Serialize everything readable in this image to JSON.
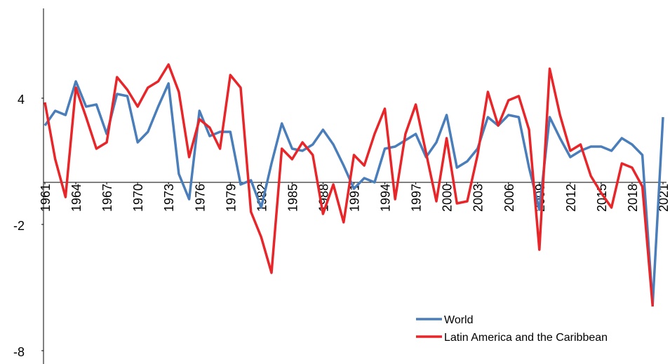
{
  "chart_data": {
    "type": "line",
    "x": [
      1961,
      1962,
      1963,
      1964,
      1965,
      1966,
      1967,
      1968,
      1969,
      1970,
      1971,
      1972,
      1973,
      1974,
      1975,
      1976,
      1977,
      1978,
      1979,
      1980,
      1981,
      1982,
      1983,
      1984,
      1985,
      1986,
      1987,
      1988,
      1989,
      1990,
      1991,
      1992,
      1993,
      1994,
      1995,
      1996,
      1997,
      1998,
      1999,
      2000,
      2001,
      2002,
      2003,
      2004,
      2005,
      2006,
      2007,
      2008,
      2009,
      2010,
      2011,
      2012,
      2013,
      2014,
      2015,
      2016,
      2017,
      2018,
      2019,
      2020,
      2021
    ],
    "series": [
      {
        "name": "World",
        "color": "#4a7ebb",
        "values": [
          2.7,
          3.4,
          3.2,
          4.8,
          3.6,
          3.7,
          2.3,
          4.2,
          4.1,
          1.9,
          2.4,
          3.6,
          4.7,
          0.4,
          -0.8,
          3.4,
          2.2,
          2.4,
          2.4,
          -0.1,
          0.1,
          -1.2,
          0.9,
          2.8,
          1.6,
          1.5,
          1.8,
          2.5,
          1.8,
          0.8,
          -0.3,
          0.2,
          0.0,
          1.6,
          1.7,
          2.0,
          2.3,
          1.2,
          1.9,
          3.2,
          0.7,
          1.0,
          1.6,
          3.1,
          2.7,
          3.2,
          3.1,
          0.7,
          -1.3,
          3.1,
          2.1,
          1.2,
          1.5,
          1.7,
          1.7,
          1.5,
          2.1,
          1.8,
          1.3,
          -5.8,
          3.1
        ]
      },
      {
        "name": "Latin America and the Caribbean",
        "color": "#e8262a",
        "values": [
          3.8,
          1.1,
          -0.7,
          4.5,
          3.1,
          1.6,
          1.9,
          5.0,
          4.4,
          3.6,
          4.5,
          4.8,
          5.6,
          4.3,
          1.2,
          3.0,
          2.6,
          1.6,
          5.1,
          4.5,
          -1.4,
          -2.6,
          -4.3,
          1.6,
          1.1,
          1.9,
          1.3,
          -1.5,
          -0.1,
          -1.9,
          1.3,
          0.8,
          2.3,
          3.5,
          -0.8,
          2.3,
          3.7,
          1.4,
          -0.9,
          2.1,
          -1.0,
          -0.9,
          1.3,
          4.3,
          2.7,
          3.9,
          4.1,
          2.5,
          -3.2,
          5.4,
          3.2,
          1.5,
          1.8,
          0.3,
          -0.5,
          -1.2,
          0.9,
          0.7,
          -0.2,
          -5.9,
          null
        ]
      }
    ],
    "xlim": [
      1961,
      2021
    ],
    "xticks": [
      1961,
      1964,
      1967,
      1970,
      1973,
      1976,
      1979,
      1982,
      1985,
      1988,
      1991,
      1994,
      1997,
      2000,
      2003,
      2006,
      2009,
      2012,
      2015,
      2018,
      2021
    ],
    "ylim": [
      -8,
      8
    ],
    "yticks": [
      -8,
      -2,
      4
    ],
    "grid": false,
    "legend": "bottom-right"
  }
}
